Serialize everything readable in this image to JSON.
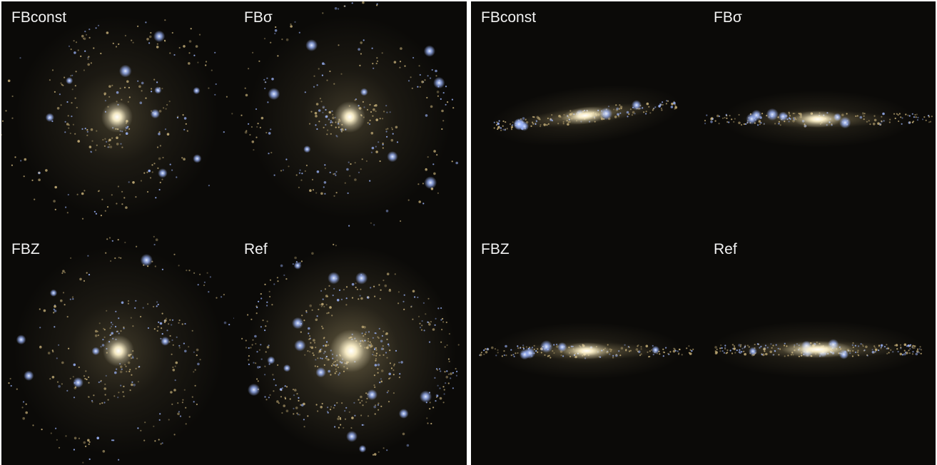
{
  "figure": {
    "left_view": {
      "panels": [
        {
          "label": "FBconst"
        },
        {
          "label": "FBσ"
        },
        {
          "label": "FBZ"
        },
        {
          "label": "Ref"
        }
      ]
    },
    "right_view": {
      "panels": [
        {
          "label": "FBconst"
        },
        {
          "label": "FBσ"
        },
        {
          "label": "FBZ"
        },
        {
          "label": "Ref"
        }
      ]
    }
  },
  "colors": {
    "background": "#0a0907",
    "bulge": "#fff3cc",
    "disk_glow": "#d9c48a",
    "young_stars": "#9fb8ff",
    "old_stars": "#c9b27a",
    "label": "#f2f2f2"
  }
}
